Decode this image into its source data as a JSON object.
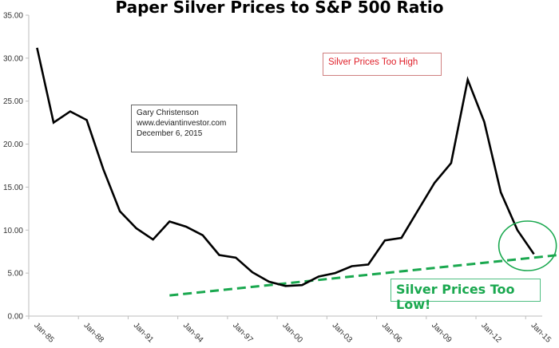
{
  "chart_data": {
    "type": "line",
    "title": "Paper Silver Prices to S&P 500 Ratio",
    "xlabel": "",
    "ylabel": "",
    "ylim": [
      0,
      35
    ],
    "yticks": [
      "0.00",
      "5.00",
      "10.00",
      "15.00",
      "20.00",
      "25.00",
      "30.00",
      "35.00"
    ],
    "grid": false,
    "categories": [
      "Jan-85",
      "Jan-86",
      "Jan-87",
      "Jan-88",
      "Jan-89",
      "Jan-90",
      "Jan-91",
      "Jan-92",
      "Jan-93",
      "Jan-94",
      "Jan-95",
      "Jan-96",
      "Jan-97",
      "Jan-98",
      "Jan-99",
      "Jan-00",
      "Jan-01",
      "Jan-02",
      "Jan-03",
      "Jan-04",
      "Jan-05",
      "Jan-06",
      "Jan-07",
      "Jan-08",
      "Jan-09",
      "Jan-10",
      "Jan-11",
      "Jan-12",
      "Jan-13",
      "Jan-14",
      "Jan-15"
    ],
    "xtick_labels": [
      "Jan-85",
      "Jan-88",
      "Jan-91",
      "Jan-94",
      "Jan-97",
      "Jan-00",
      "Jan-03",
      "Jan-06",
      "Jan-09",
      "Jan-12",
      "Jan-15"
    ],
    "series": [
      {
        "name": "Silver / S&P 500 ratio",
        "color": "#000000",
        "values": [
          31.2,
          22.5,
          23.8,
          22.8,
          17.1,
          12.2,
          10.2,
          8.9,
          11.0,
          10.4,
          9.4,
          7.1,
          6.8,
          5.1,
          4.0,
          3.5,
          3.6,
          4.6,
          5.0,
          5.8,
          6.0,
          8.8,
          9.1,
          12.3,
          15.5,
          17.8,
          27.5,
          22.6,
          14.4,
          10.0,
          7.2
        ]
      }
    ],
    "trendline": {
      "color": "#1aa84f",
      "style": "dashed",
      "start": {
        "x": "Jan-93",
        "y": 2.4
      },
      "end": {
        "x": "Jan-16",
        "y": 7.1
      }
    },
    "highlight_circle": {
      "color": "#1aa84f",
      "around": "Jan-15"
    }
  },
  "annotations": {
    "info": {
      "author": "Gary Christenson",
      "website": "www.deviantinvestor.com",
      "date": "December 6, 2015"
    },
    "too_high": {
      "text": "Silver Prices Too High",
      "color": "#e0202a"
    },
    "too_low": {
      "text": "Silver Prices Too Low!",
      "color": "#1aa84f"
    }
  }
}
